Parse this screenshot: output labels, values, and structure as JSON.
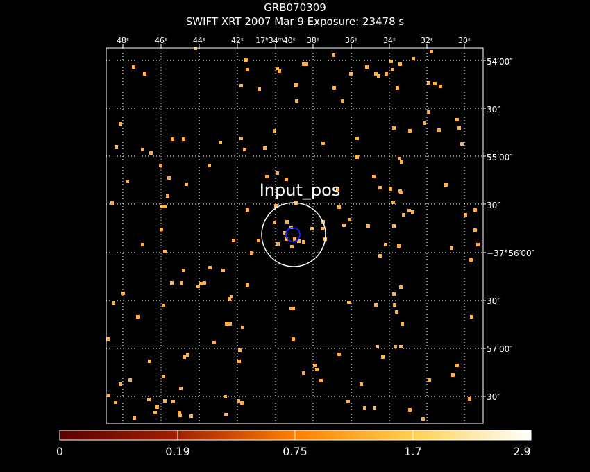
{
  "header": {
    "title": "GRB070309",
    "subtitle": "SWIFT XRT   2007 Mar  9    Exposure: 23478 s"
  },
  "ra_axis": {
    "labels": [
      "48ˢ",
      "46ˢ",
      "44ˢ",
      "42ˢ",
      "17ʰ34ᵐ40ˢ",
      "38ˢ",
      "36ˢ",
      "34ˢ",
      "32ˢ",
      "30ˢ"
    ]
  },
  "dec_axis": {
    "labels": [
      "54′00″",
      "30″",
      "55′00″",
      "30″",
      "−37°56′00″",
      "30″",
      "57′00″",
      "30″"
    ]
  },
  "annotation": {
    "region_label": "Input_pos"
  },
  "colorbar": {
    "tick_labels": [
      "0",
      "0.19",
      "0.75",
      "1.7",
      "2.9"
    ],
    "tick_values": [
      0,
      0.19,
      0.75,
      1.7,
      2.9
    ],
    "colors": [
      "#5a0000",
      "#ff8000",
      "#ffcc40",
      "#ffffff"
    ]
  },
  "colors": {
    "background": "#000000",
    "event": "#ffb040",
    "grid": "#ffffff",
    "source_circle": "#ffffff",
    "error_circle": "#1a1aff"
  }
}
